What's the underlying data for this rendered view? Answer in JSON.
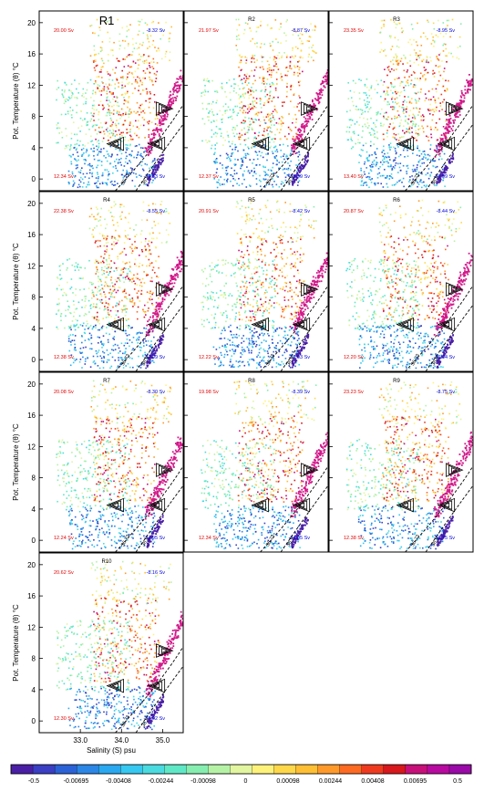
{
  "chart_data": {
    "type": "scatter",
    "description_units": {
      "x": "psu",
      "y": "°C"
    },
    "xlabel": "Salinity (S) psu",
    "ylabel": "Pot. Temperature (θ) °C",
    "xlim": [
      32.0,
      35.5
    ],
    "ylim": [
      -1.5,
      21.5
    ],
    "xticks": [
      "33.0",
      "34.0",
      "35.0"
    ],
    "xtick_values": [
      33.0,
      34.0,
      35.0
    ],
    "yticks": [
      "0",
      "4",
      "8",
      "12",
      "16",
      "20"
    ],
    "ytick_values": [
      0,
      4,
      8,
      12,
      16,
      20
    ],
    "density_labels": [
      "36.9",
      "36.73"
    ],
    "panels": [
      {
        "title": "R1",
        "top_value": "20.00 Sv",
        "bottom_value": "-8.32 Sv",
        "red_lower": "12.34 Sv",
        "blue_lower": "-24.63 Sv"
      },
      {
        "title": "R2",
        "top_value": "21.97 Sv",
        "bottom_value": "-8.87 Sv",
        "red_lower": "12.37 Sv",
        "blue_lower": "-25.99 Sv"
      },
      {
        "title": "R3",
        "top_value": "23.35 Sv",
        "bottom_value": "-8.95 Sv",
        "red_lower": "13.40 Sv",
        "blue_lower": "-27.99 Sv"
      },
      {
        "title": "R4",
        "top_value": "22.38 Sv",
        "bottom_value": "-8.55 Sv",
        "red_lower": "12.38 Sv",
        "blue_lower": "-27.99 Sv"
      },
      {
        "title": "R5",
        "top_value": "20.91 Sv",
        "bottom_value": "-8.42 Sv",
        "red_lower": "12.22 Sv",
        "blue_lower": "-27.03 Sv"
      },
      {
        "title": "R6",
        "top_value": "20.87 Sv",
        "bottom_value": "-8.44 Sv",
        "red_lower": "12.20 Sv",
        "blue_lower": "-26.04 Sv"
      },
      {
        "title": "R7",
        "top_value": "20.08 Sv",
        "bottom_value": "-8.30 Sv",
        "red_lower": "12.24 Sv",
        "blue_lower": "-24.95 Sv"
      },
      {
        "title": "R8",
        "top_value": "19.98 Sv",
        "bottom_value": "-8.39 Sv",
        "red_lower": "12.34 Sv",
        "blue_lower": "-24.05 Sv"
      },
      {
        "title": "R9",
        "top_value": "23.23 Sv",
        "bottom_value": "-8.75 Sv",
        "red_lower": "12.38 Sv",
        "blue_lower": "-28.75 Sv"
      },
      {
        "title": "R10",
        "top_value": "20.62 Sv",
        "bottom_value": "-8.16 Sv",
        "red_lower": "12.30 Sv",
        "blue_lower": "-27.02 Sv"
      }
    ],
    "colorbar": {
      "labels": [
        "-0.5",
        "-0.00695",
        "-0.00408",
        "-0.00244",
        "-0.00098",
        "0",
        "0.00098",
        "0.00244",
        "0.00408",
        "0.00695",
        "0.5"
      ],
      "colors": [
        "#4a1fa6",
        "#3a3fc4",
        "#2c62d8",
        "#2b86e6",
        "#2aa9f0",
        "#36c8f0",
        "#4adbe0",
        "#5fe8c6",
        "#86eeb0",
        "#b6f2a6",
        "#e2f5a0",
        "#fff27a",
        "#ffd84a",
        "#ffbf34",
        "#ff9a2a",
        "#ff6a22",
        "#f03a1f",
        "#d8181c",
        "#c8107a",
        "#b80aa0",
        "#9a0aa8"
      ],
      "low_color": "#4a1fa6",
      "high_color": "#b5149e"
    },
    "colors": {
      "title_red": "#e00000",
      "value_blue": "#0000dd",
      "magenta_branch": "#d11a8a"
    }
  }
}
